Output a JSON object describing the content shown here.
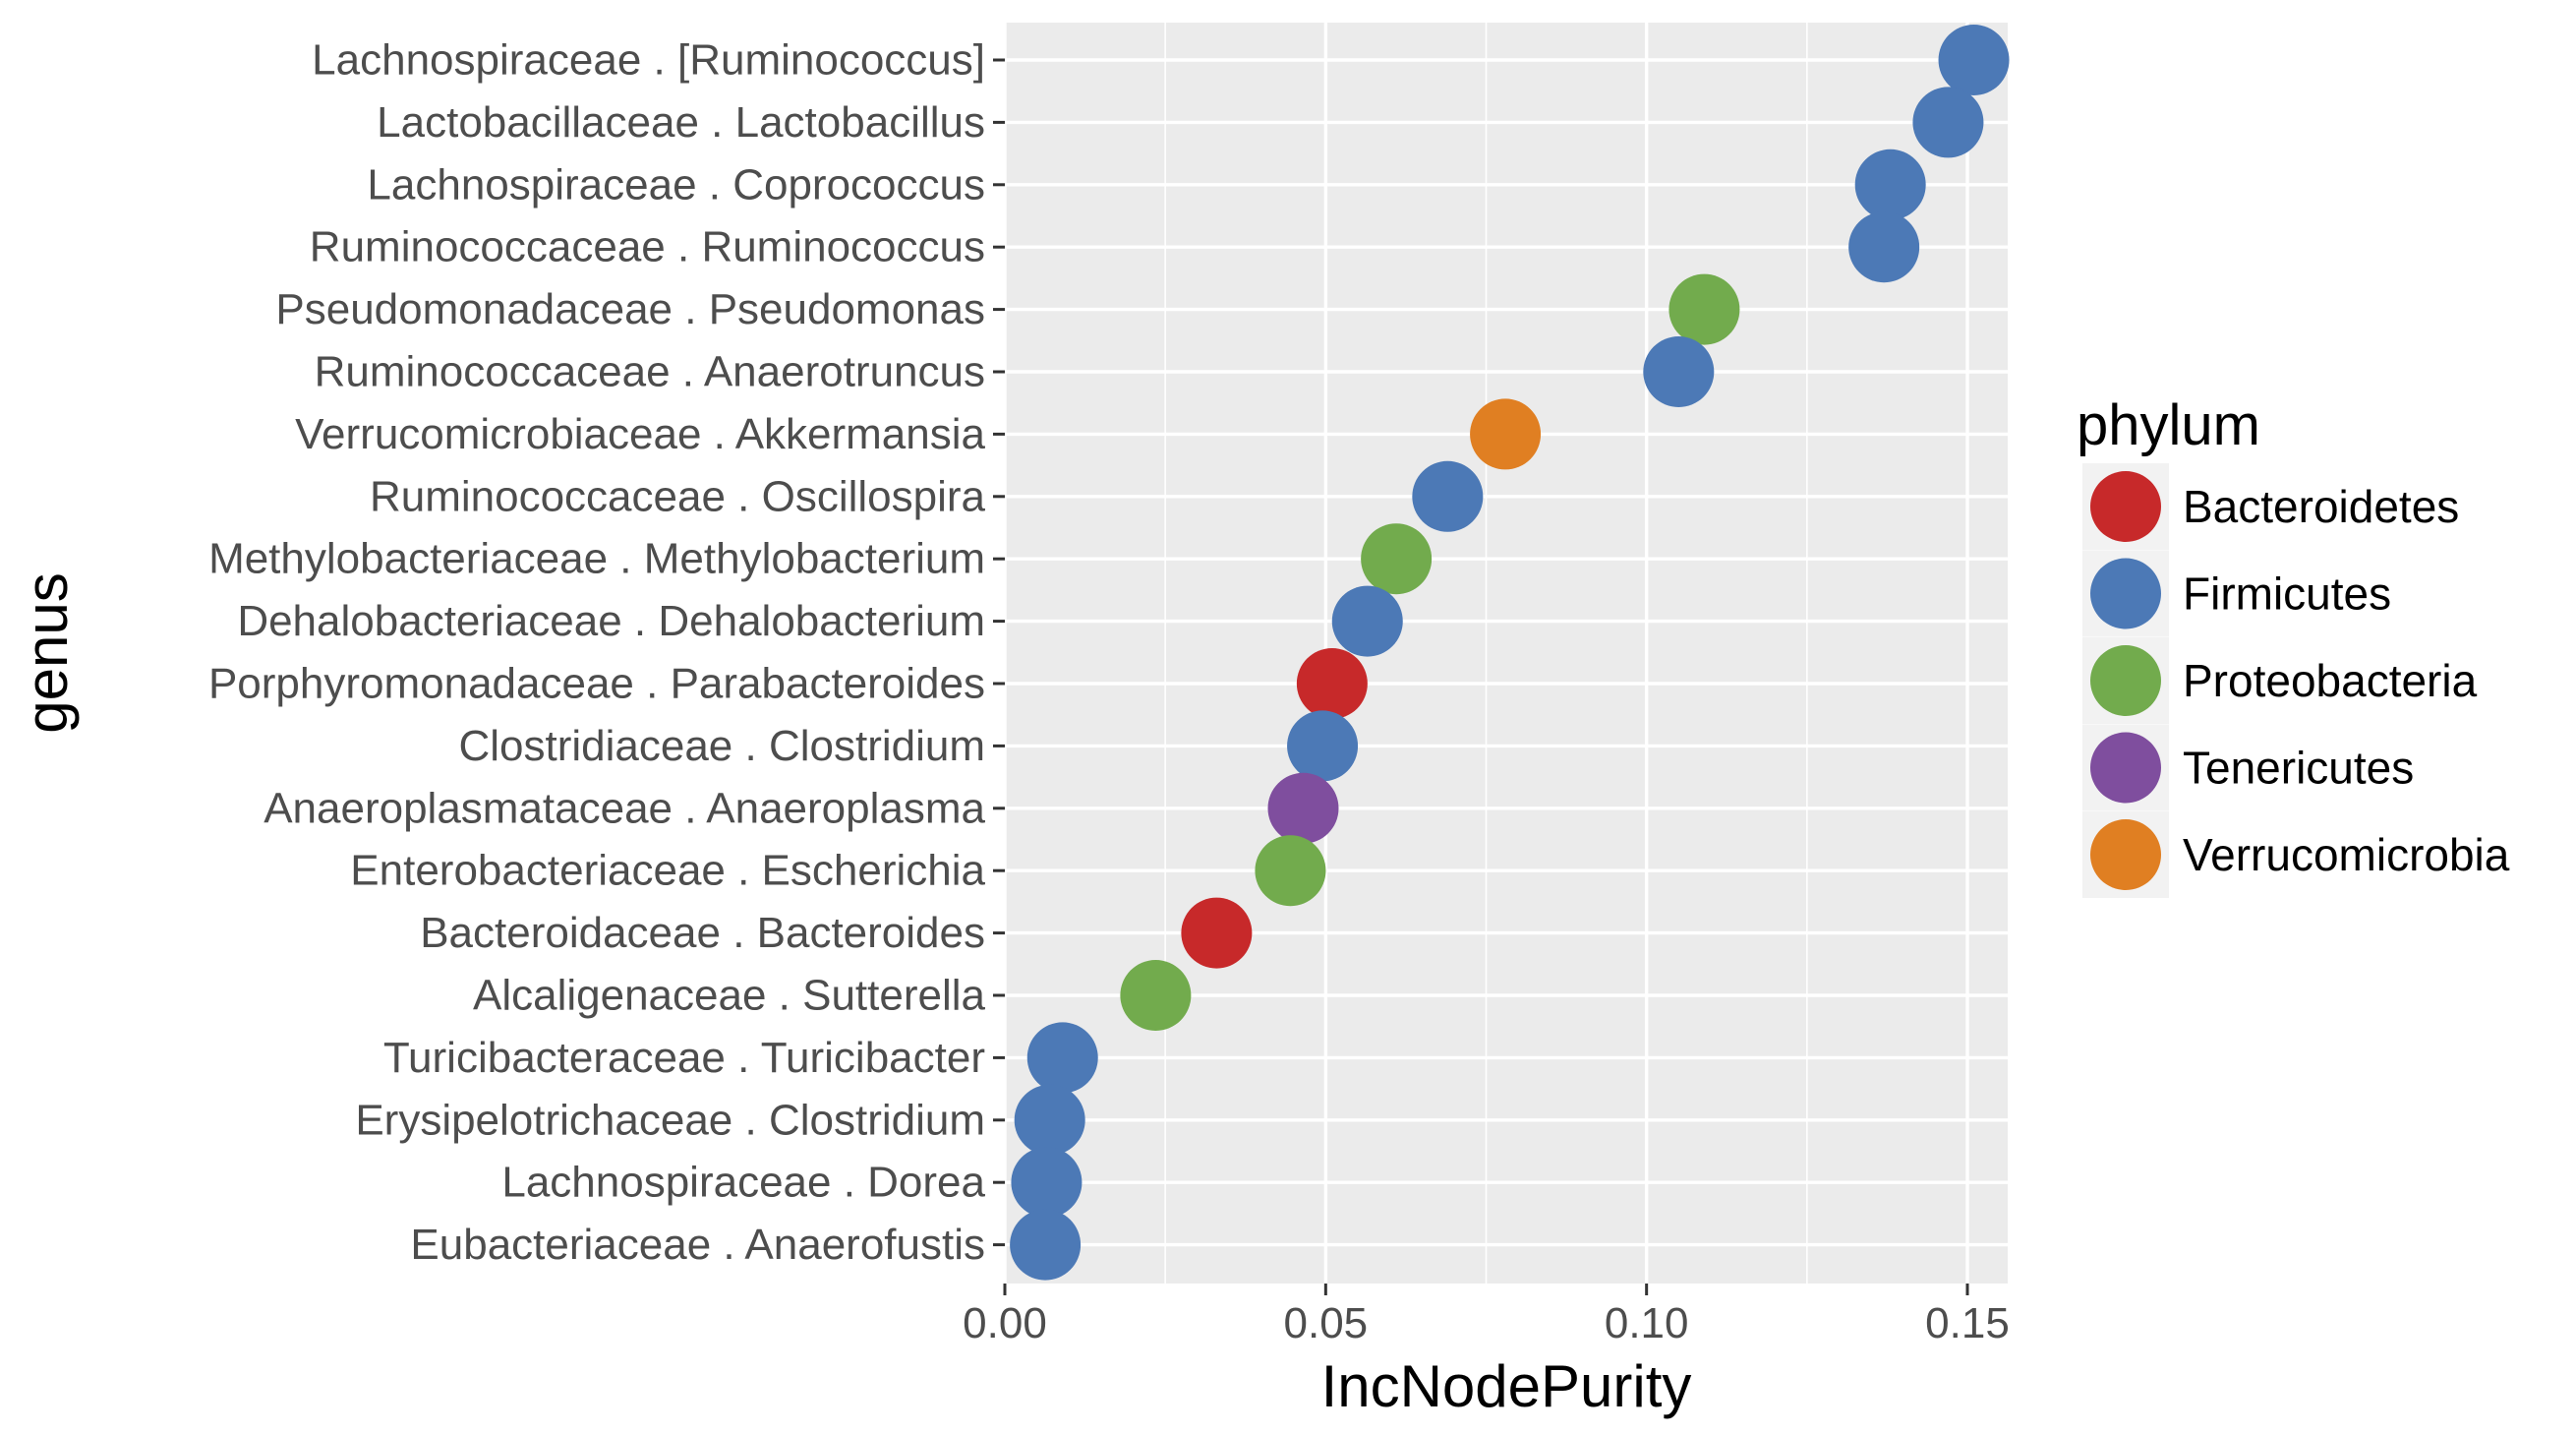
{
  "chart_data": {
    "type": "scatter",
    "xlabel": "IncNodePurity",
    "ylabel": "genus",
    "xlim": [
      0,
      0.158
    ],
    "x_ticks": [
      "0.00",
      "0.05",
      "0.10",
      "0.15"
    ],
    "x_tick_values": [
      0,
      0.05,
      0.1,
      0.15
    ],
    "grid": true,
    "points": [
      {
        "genus": "Lachnospiraceae . [Ruminococcus]",
        "x": 0.151,
        "phylum": "Firmicutes"
      },
      {
        "genus": "Lactobacillaceae . Lactobacillus",
        "x": 0.147,
        "phylum": "Firmicutes"
      },
      {
        "genus": "Lachnospiraceae . Coprococcus",
        "x": 0.138,
        "phylum": "Firmicutes"
      },
      {
        "genus": "Ruminococcaceae . Ruminococcus",
        "x": 0.137,
        "phylum": "Firmicutes"
      },
      {
        "genus": "Pseudomonadaceae . Pseudomonas",
        "x": 0.109,
        "phylum": "Proteobacteria"
      },
      {
        "genus": "Ruminococcaceae . Anaerotruncus",
        "x": 0.105,
        "phylum": "Firmicutes"
      },
      {
        "genus": "Verrucomicrobiaceae . Akkermansia",
        "x": 0.078,
        "phylum": "Verrucomicrobia"
      },
      {
        "genus": "Ruminococcaceae . Oscillospira",
        "x": 0.069,
        "phylum": "Firmicutes"
      },
      {
        "genus": "Methylobacteriaceae . Methylobacterium",
        "x": 0.061,
        "phylum": "Proteobacteria"
      },
      {
        "genus": "Dehalobacteriaceae . Dehalobacterium",
        "x": 0.0565,
        "phylum": "Firmicutes"
      },
      {
        "genus": "Porphyromonadaceae . Parabacteroides",
        "x": 0.051,
        "phylum": "Bacteroidetes"
      },
      {
        "genus": "Clostridiaceae . Clostridium",
        "x": 0.0495,
        "phylum": "Firmicutes"
      },
      {
        "genus": "Anaeroplasmataceae . Anaeroplasma",
        "x": 0.0465,
        "phylum": "Tenericutes"
      },
      {
        "genus": "Enterobacteriaceae . Escherichia",
        "x": 0.0445,
        "phylum": "Proteobacteria"
      },
      {
        "genus": "Bacteroidaceae . Bacteroides",
        "x": 0.033,
        "phylum": "Bacteroidetes"
      },
      {
        "genus": "Alcaligenaceae . Sutterella",
        "x": 0.0235,
        "phylum": "Proteobacteria"
      },
      {
        "genus": "Turicibacteraceae . Turicibacter",
        "x": 0.009,
        "phylum": "Firmicutes"
      },
      {
        "genus": "Erysipelotrichaceae . Clostridium",
        "x": 0.007,
        "phylum": "Firmicutes"
      },
      {
        "genus": "Lachnospiraceae . Dorea",
        "x": 0.0065,
        "phylum": "Firmicutes"
      },
      {
        "genus": "Eubacteriaceae . Anaerofustis",
        "x": 0.0063,
        "phylum": "Firmicutes"
      }
    ],
    "legend": {
      "title": "phylum",
      "placement": "right",
      "entries": [
        {
          "name": "Bacteroidetes",
          "color": "#C7292A"
        },
        {
          "name": "Firmicutes",
          "color": "#4C79B6"
        },
        {
          "name": "Proteobacteria",
          "color": "#72AB4D"
        },
        {
          "name": "Tenericutes",
          "color": "#7F4E9E"
        },
        {
          "name": "Verrucomicrobia",
          "color": "#E07F22"
        }
      ]
    }
  },
  "colors": {
    "panel_background": "#EBEBEB",
    "grid_line": "#FFFFFF",
    "tick_text": "#4D4D4D",
    "tick_mark": "#333333"
  }
}
